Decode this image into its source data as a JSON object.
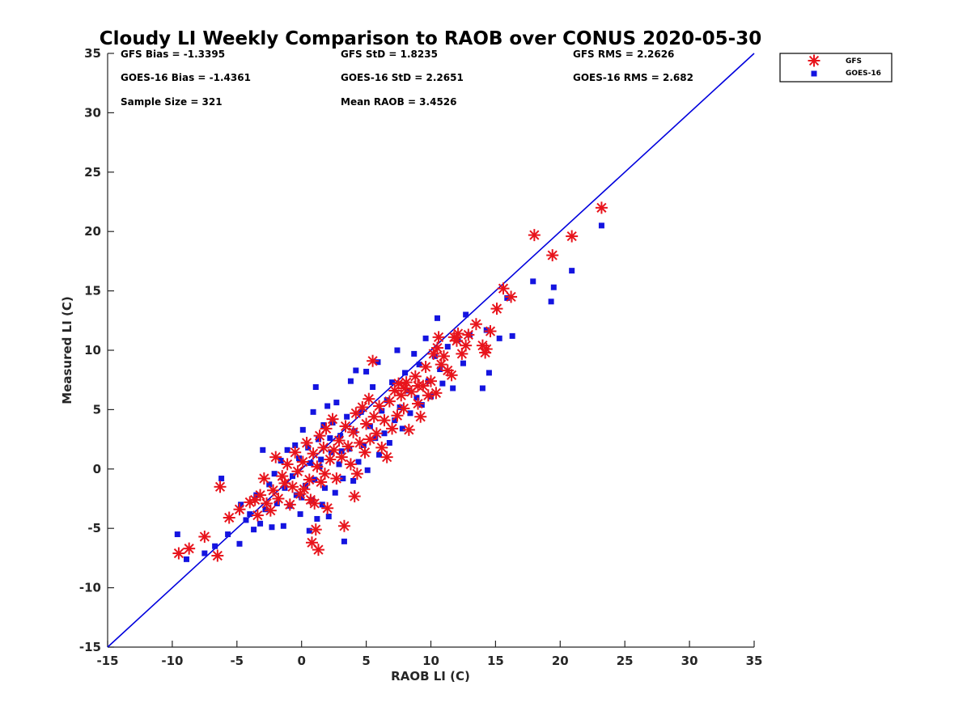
{
  "chart_data": {
    "type": "scatter",
    "title": "Cloudy LI Weekly Comparison to RAOB over CONUS 2020-05-30",
    "xlabel": "RAOB LI (C)",
    "ylabel": "Measured LI (C)",
    "xlim": [
      -15,
      35
    ],
    "ylim": [
      -15,
      35
    ],
    "xticks": [
      -15,
      -10,
      -5,
      0,
      5,
      10,
      15,
      20,
      25,
      30,
      35
    ],
    "yticks": [
      -15,
      -10,
      -5,
      0,
      5,
      10,
      15,
      20,
      25,
      30,
      35
    ],
    "grid": false,
    "legend_position": "outside top-right",
    "reference_line": {
      "from": [
        -15,
        -15
      ],
      "to": [
        35,
        35
      ],
      "color": "#0000dd"
    },
    "stats": [
      [
        "GFS Bias = -1.3395",
        "GFS StD = 1.8235",
        "GFS RMS = 2.2626"
      ],
      [
        "GOES-16 Bias = -1.4361",
        "GOES-16 StD = 2.2651",
        "GOES-16 RMS = 2.682"
      ],
      [
        "Sample Size = 321",
        "Mean RAOB = 3.4526",
        ""
      ]
    ],
    "series": [
      {
        "name": "GFS",
        "marker": "asterisk",
        "color": "#e8141c",
        "points": [
          [
            -9.5,
            -7.1
          ],
          [
            -8.7,
            -6.7
          ],
          [
            -7.5,
            -5.7
          ],
          [
            -6.5,
            -7.3
          ],
          [
            -6.3,
            -1.5
          ],
          [
            -5.6,
            -4.1
          ],
          [
            -4.8,
            -3.4
          ],
          [
            -4.0,
            -2.8
          ],
          [
            -3.6,
            -2.6
          ],
          [
            -3.4,
            -3.9
          ],
          [
            -3.2,
            -2.2
          ],
          [
            -2.9,
            -0.8
          ],
          [
            -2.7,
            -2.9
          ],
          [
            -2.4,
            -3.5
          ],
          [
            -2.2,
            -1.8
          ],
          [
            -2.0,
            1.0
          ],
          [
            -1.8,
            -2.5
          ],
          [
            -1.5,
            -0.6
          ],
          [
            -1.3,
            -1.2
          ],
          [
            -1.1,
            0.4
          ],
          [
            -0.9,
            -3.0
          ],
          [
            -0.7,
            -1.5
          ],
          [
            -0.5,
            1.4
          ],
          [
            -0.3,
            -0.2
          ],
          [
            -0.1,
            -2.1
          ],
          [
            0.1,
            0.6
          ],
          [
            0.2,
            -1.7
          ],
          [
            0.4,
            2.2
          ],
          [
            0.6,
            -0.9
          ],
          [
            0.7,
            -2.6
          ],
          [
            0.8,
            -6.2
          ],
          [
            0.9,
            1.3
          ],
          [
            1.0,
            -2.9
          ],
          [
            1.1,
            -5.1
          ],
          [
            1.2,
            0.2
          ],
          [
            1.3,
            -6.8
          ],
          [
            1.4,
            2.8
          ],
          [
            1.5,
            -1.1
          ],
          [
            1.7,
            1.8
          ],
          [
            1.8,
            -0.4
          ],
          [
            1.9,
            3.4
          ],
          [
            2.0,
            -3.3
          ],
          [
            2.2,
            0.8
          ],
          [
            2.4,
            4.2
          ],
          [
            2.5,
            1.6
          ],
          [
            2.7,
            -0.8
          ],
          [
            2.9,
            2.4
          ],
          [
            3.1,
            1.0
          ],
          [
            3.3,
            -4.8
          ],
          [
            3.4,
            3.6
          ],
          [
            3.6,
            1.9
          ],
          [
            3.8,
            0.4
          ],
          [
            4.0,
            3.1
          ],
          [
            4.1,
            -2.3
          ],
          [
            4.2,
            4.7
          ],
          [
            4.3,
            -0.4
          ],
          [
            4.5,
            2.2
          ],
          [
            4.7,
            5.2
          ],
          [
            4.9,
            1.4
          ],
          [
            5.0,
            3.8
          ],
          [
            5.2,
            5.9
          ],
          [
            5.3,
            2.5
          ],
          [
            5.5,
            9.1
          ],
          [
            5.6,
            4.4
          ],
          [
            5.8,
            3.0
          ],
          [
            6.0,
            5.3
          ],
          [
            6.2,
            1.8
          ],
          [
            6.4,
            4.1
          ],
          [
            6.6,
            1.0
          ],
          [
            6.8,
            5.7
          ],
          [
            7.0,
            3.4
          ],
          [
            7.2,
            6.6
          ],
          [
            7.4,
            4.5
          ],
          [
            7.7,
            6.2
          ],
          [
            7.9,
            5.1
          ],
          [
            8.1,
            7.3
          ],
          [
            8.3,
            3.3
          ],
          [
            8.5,
            6.5
          ],
          [
            8.8,
            7.8
          ],
          [
            9.0,
            5.5
          ],
          [
            9.2,
            4.4
          ],
          [
            9.4,
            7.0
          ],
          [
            9.6,
            8.6
          ],
          [
            9.8,
            6.2
          ],
          [
            10.0,
            7.4
          ],
          [
            10.2,
            9.7
          ],
          [
            10.4,
            6.4
          ],
          [
            10.6,
            11.1
          ],
          [
            10.8,
            8.8
          ],
          [
            11.0,
            9.5
          ],
          [
            11.3,
            8.3
          ],
          [
            11.6,
            7.9
          ],
          [
            11.8,
            11.1
          ],
          [
            12.1,
            11.4
          ],
          [
            12.4,
            9.7
          ],
          [
            12.7,
            10.4
          ],
          [
            12.9,
            11.3
          ],
          [
            13.5,
            12.2
          ],
          [
            14.0,
            10.4
          ],
          [
            14.2,
            9.8
          ],
          [
            14.6,
            11.6
          ],
          [
            15.1,
            13.5
          ],
          [
            15.6,
            15.2
          ],
          [
            16.2,
            14.5
          ],
          [
            18.0,
            19.7
          ],
          [
            19.4,
            18.0
          ],
          [
            20.9,
            19.6
          ],
          [
            23.2,
            22.0
          ],
          [
            7.5,
            7.2
          ],
          [
            8.0,
            6.8
          ],
          [
            9.0,
            7.0
          ],
          [
            10.5,
            10.2
          ],
          [
            12.0,
            10.8
          ],
          [
            14.3,
            10.1
          ]
        ]
      },
      {
        "name": "GOES-16",
        "marker": "square",
        "color": "#1414e0",
        "points": [
          [
            -9.6,
            -5.5
          ],
          [
            -8.9,
            -7.6
          ],
          [
            -7.5,
            -7.1
          ],
          [
            -6.7,
            -6.5
          ],
          [
            -6.2,
            -0.8
          ],
          [
            -5.7,
            -5.5
          ],
          [
            -4.8,
            -6.3
          ],
          [
            -4.7,
            -3.0
          ],
          [
            -4.3,
            -4.3
          ],
          [
            -4.0,
            -3.8
          ],
          [
            -3.7,
            -5.1
          ],
          [
            -3.5,
            -2.2
          ],
          [
            -3.2,
            -4.6
          ],
          [
            -3.0,
            1.6
          ],
          [
            -2.8,
            -3.4
          ],
          [
            -2.5,
            -1.3
          ],
          [
            -2.3,
            -4.9
          ],
          [
            -2.1,
            -0.4
          ],
          [
            -1.9,
            -2.9
          ],
          [
            -1.6,
            0.7
          ],
          [
            -1.4,
            -4.8
          ],
          [
            -1.3,
            -1.6
          ],
          [
            -1.1,
            1.6
          ],
          [
            -0.9,
            -3.1
          ],
          [
            -0.7,
            -0.6
          ],
          [
            -0.5,
            2.0
          ],
          [
            -0.4,
            -2.2
          ],
          [
            -0.2,
            0.9
          ],
          [
            -0.1,
            -3.8
          ],
          [
            0.1,
            3.3
          ],
          [
            0.3,
            -1.4
          ],
          [
            0.5,
            1.8
          ],
          [
            0.6,
            -5.2
          ],
          [
            0.7,
            0.5
          ],
          [
            0.8,
            -2.6
          ],
          [
            0.9,
            4.8
          ],
          [
            1.0,
            -0.9
          ],
          [
            1.1,
            6.9
          ],
          [
            1.2,
            -4.2
          ],
          [
            1.3,
            2.5
          ],
          [
            1.4,
            0.2
          ],
          [
            1.6,
            -3.0
          ],
          [
            1.7,
            3.7
          ],
          [
            1.8,
            -1.6
          ],
          [
            2.0,
            5.3
          ],
          [
            2.1,
            -4.0
          ],
          [
            2.3,
            1.4
          ],
          [
            2.4,
            3.9
          ],
          [
            2.6,
            -2.0
          ],
          [
            2.7,
            5.6
          ],
          [
            2.9,
            0.4
          ],
          [
            3.0,
            2.8
          ],
          [
            3.2,
            -0.8
          ],
          [
            3.3,
            -6.1
          ],
          [
            3.5,
            4.4
          ],
          [
            3.7,
            1.7
          ],
          [
            3.8,
            7.4
          ],
          [
            4.0,
            -1.0
          ],
          [
            4.1,
            3.2
          ],
          [
            4.2,
            8.3
          ],
          [
            4.4,
            0.6
          ],
          [
            4.6,
            4.8
          ],
          [
            4.8,
            2.0
          ],
          [
            5.0,
            8.2
          ],
          [
            5.1,
            -0.1
          ],
          [
            5.3,
            3.6
          ],
          [
            5.5,
            6.9
          ],
          [
            5.7,
            2.6
          ],
          [
            5.9,
            9.0
          ],
          [
            6.0,
            1.2
          ],
          [
            6.2,
            4.9
          ],
          [
            6.4,
            3.0
          ],
          [
            6.6,
            5.8
          ],
          [
            6.8,
            2.2
          ],
          [
            7.0,
            7.3
          ],
          [
            7.2,
            4.1
          ],
          [
            7.4,
            10.0
          ],
          [
            7.6,
            5.2
          ],
          [
            7.8,
            3.4
          ],
          [
            8.0,
            8.1
          ],
          [
            8.2,
            6.6
          ],
          [
            8.4,
            4.7
          ],
          [
            8.7,
            9.7
          ],
          [
            8.9,
            6.0
          ],
          [
            9.1,
            8.8
          ],
          [
            9.3,
            5.4
          ],
          [
            9.6,
            11.0
          ],
          [
            9.8,
            7.4
          ],
          [
            10.0,
            6.1
          ],
          [
            10.3,
            9.5
          ],
          [
            10.5,
            12.7
          ],
          [
            10.7,
            8.4
          ],
          [
            10.9,
            7.2
          ],
          [
            11.3,
            10.3
          ],
          [
            11.7,
            6.8
          ],
          [
            12.1,
            10.9
          ],
          [
            12.5,
            8.9
          ],
          [
            12.7,
            13.0
          ],
          [
            13.0,
            11.3
          ],
          [
            14.0,
            6.8
          ],
          [
            14.3,
            11.7
          ],
          [
            14.5,
            8.1
          ],
          [
            15.3,
            11.0
          ],
          [
            15.9,
            14.4
          ],
          [
            16.3,
            11.2
          ],
          [
            17.9,
            15.8
          ],
          [
            19.3,
            14.1
          ],
          [
            19.5,
            15.3
          ],
          [
            20.9,
            16.7
          ],
          [
            23.2,
            20.5
          ],
          [
            1.5,
            0.8
          ],
          [
            2.2,
            2.6
          ],
          [
            3.1,
            1.5
          ],
          [
            0.0,
            -2.4
          ]
        ]
      }
    ]
  }
}
